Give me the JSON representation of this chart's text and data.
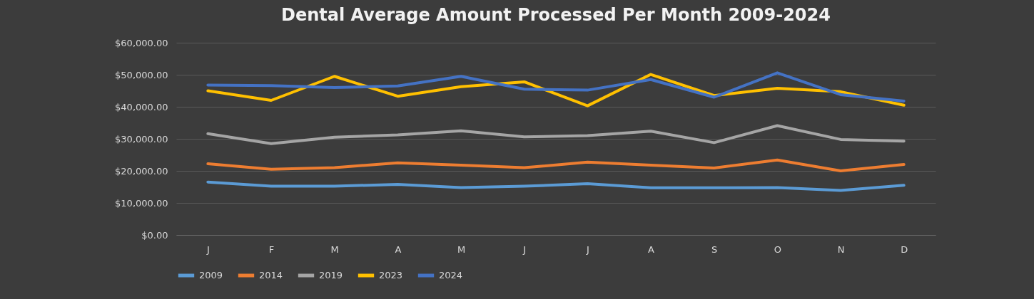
{
  "chart_data": {
    "type": "line",
    "title": "Dental Average Amount Processed Per Month 2009-2024",
    "categories": [
      "J",
      "F",
      "M",
      "A",
      "M",
      "J",
      "J",
      "A",
      "S",
      "O",
      "N",
      "D"
    ],
    "ylim": [
      0,
      60000
    ],
    "yticks": [
      {
        "value": 0,
        "label": "$0.00"
      },
      {
        "value": 10000,
        "label": "$10,000.00"
      },
      {
        "value": 20000,
        "label": "$20,000.00"
      },
      {
        "value": 30000,
        "label": "$30,000.00"
      },
      {
        "value": 40000,
        "label": "$40,000.00"
      },
      {
        "value": 50000,
        "label": "$50,000.00"
      },
      {
        "value": 60000,
        "label": "$60,000.00"
      }
    ],
    "grid": "y",
    "legend": "bottom",
    "series": [
      {
        "name": "2009",
        "color": "#5b9bd5",
        "values": [
          16500,
          15200,
          15200,
          15800,
          14800,
          15200,
          16000,
          14700,
          14700,
          14800,
          13900,
          15500
        ]
      },
      {
        "name": "2014",
        "color": "#ed7d31",
        "values": [
          22200,
          20500,
          21000,
          22500,
          21800,
          21000,
          22700,
          21800,
          20900,
          23400,
          20000,
          22000
        ]
      },
      {
        "name": "2019",
        "color": "#a5a5a5",
        "values": [
          31600,
          28500,
          30500,
          31200,
          32500,
          30600,
          31000,
          32400,
          28800,
          34100,
          29800,
          29300
        ]
      },
      {
        "name": "2023",
        "color": "#ffc000",
        "values": [
          45000,
          42000,
          49500,
          43300,
          46300,
          47800,
          40300,
          50100,
          43500,
          45800,
          44700,
          40500
        ]
      },
      {
        "name": "2024",
        "color": "#4472c4",
        "values": [
          46800,
          46600,
          46000,
          46500,
          49500,
          45500,
          45200,
          48500,
          43000,
          50600,
          43800,
          41800
        ]
      }
    ]
  }
}
